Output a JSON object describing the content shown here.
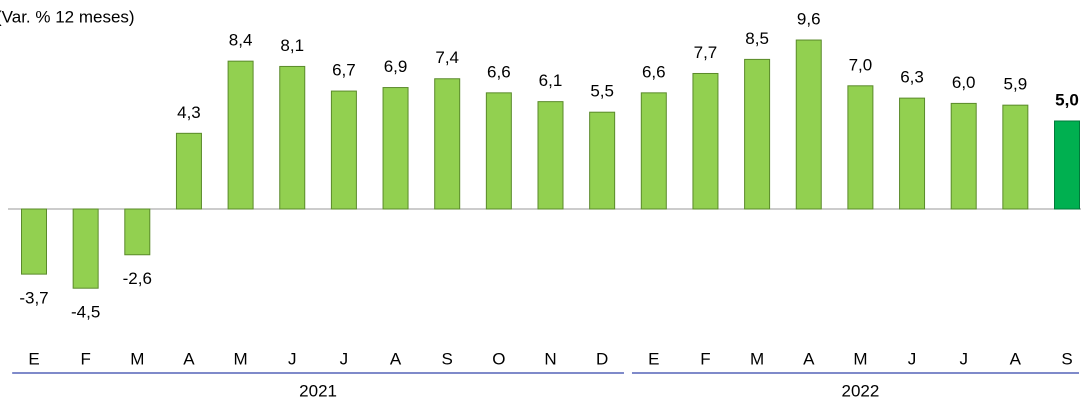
{
  "chart_data": {
    "type": "bar",
    "title": "(Var. % 12 meses)",
    "color": "#92d050",
    "groups": [
      {
        "label": "2021",
        "categories": [
          "E",
          "F",
          "M",
          "A",
          "M",
          "J",
          "J",
          "A",
          "S",
          "O",
          "N",
          "D"
        ],
        "values": [
          -3.7,
          -4.5,
          -2.6,
          4.3,
          8.4,
          8.1,
          6.7,
          6.9,
          7.4,
          6.6,
          6.1,
          5.5
        ],
        "value_labels": [
          "-3,7",
          "-4,5",
          "-2,6",
          "4,3",
          "8,4",
          "8,1",
          "6,7",
          "6,9",
          "7,4",
          "6,6",
          "6,1",
          "5,5"
        ],
        "colors": [
          "#92d050",
          "#92d050",
          "#92d050",
          "#92d050",
          "#92d050",
          "#92d050",
          "#92d050",
          "#92d050",
          "#92d050",
          "#92d050",
          "#92d050",
          "#92d050"
        ]
      },
      {
        "label": "2022",
        "categories": [
          "E",
          "F",
          "M",
          "A",
          "M",
          "J",
          "J",
          "A",
          "S"
        ],
        "values": [
          6.6,
          7.7,
          8.5,
          9.6,
          7.0,
          6.3,
          6.0,
          5.9,
          5.0
        ],
        "value_labels": [
          "6,6",
          "7,7",
          "8,5",
          "9,6",
          "7,0",
          "6,3",
          "6,0",
          "5,9",
          "5,0"
        ],
        "colors": [
          "#92d050",
          "#92d050",
          "#92d050",
          "#92d050",
          "#92d050",
          "#92d050",
          "#92d050",
          "#92d050",
          "#00b050"
        ]
      }
    ]
  }
}
